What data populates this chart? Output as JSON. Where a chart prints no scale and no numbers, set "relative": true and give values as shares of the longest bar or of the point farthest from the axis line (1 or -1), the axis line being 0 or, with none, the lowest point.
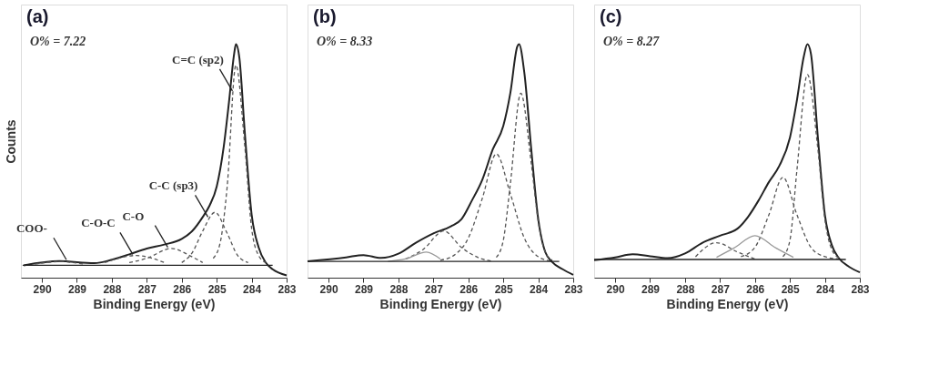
{
  "chart_data": [
    {
      "type": "line",
      "title": "(a)",
      "relative": true,
      "xlabel": "Binding Energy (eV)",
      "ylabel": "Counts",
      "xlim": [
        290.6,
        283
      ],
      "xticks": [
        290,
        289,
        288,
        287,
        286,
        285,
        284,
        283
      ],
      "annotations": [
        "O% = 7.22",
        {
          "text": "C=C (sp2)",
          "x": 284.55,
          "y": 0.8
        },
        {
          "text": "C-C (sp3)",
          "x": 285.25,
          "y": 0.26
        },
        {
          "text": "C-O",
          "x": 286.4,
          "y": 0.13
        },
        {
          "text": "C-O-C",
          "x": 287.4,
          "y": 0.1
        },
        {
          "text": "COO-",
          "x": 289.3,
          "y": 0.077
        }
      ],
      "series": [
        {
          "color": "#222222",
          "line_style": "solid",
          "x": [
            290.52,
            289.5,
            288.5,
            288,
            287.5,
            287,
            286.5,
            286,
            285.7,
            285.4,
            285.2,
            285,
            284.8,
            284.65,
            284.5,
            284.45,
            284.35,
            284.2,
            284.0,
            283.8,
            283.6,
            283.4,
            283.0
          ],
          "values": [
            0.053,
            0.071,
            0.062,
            0.077,
            0.1,
            0.125,
            0.142,
            0.166,
            0.2,
            0.26,
            0.31,
            0.39,
            0.56,
            0.75,
            0.96,
            1.0,
            0.94,
            0.63,
            0.27,
            0.13,
            0.065,
            0.036,
            0.01
          ]
        },
        {
          "color": "#555555",
          "line_style": "dashed",
          "x": [
            285.1,
            284.9,
            284.7,
            284.45,
            284.2,
            284.0,
            283.8,
            283.6
          ],
          "values": [
            0.083,
            0.15,
            0.39,
            0.91,
            0.57,
            0.21,
            0.095,
            0.065
          ]
        },
        {
          "color": "#555555",
          "line_style": "dashed",
          "x": [
            286,
            285.7,
            285.4,
            285.05,
            284.7,
            284.4,
            284.1
          ],
          "values": [
            0.065,
            0.107,
            0.2,
            0.28,
            0.19,
            0.095,
            0.065
          ]
        },
        {
          "color": "#555555",
          "line_style": "dashed",
          "x": [
            287.5,
            287,
            286.3,
            285.7,
            285.4
          ],
          "values": [
            0.065,
            0.083,
            0.125,
            0.089,
            0.065
          ]
        },
        {
          "color": "#555555",
          "line_style": "dashed",
          "x": [
            288.2,
            287.3,
            286.5
          ],
          "values": [
            0.065,
            0.095,
            0.065
          ]
        },
        {
          "color": "#555555",
          "line_style": "dashed",
          "x": [
            290.2,
            289.5,
            288.8
          ],
          "values": [
            0.058,
            0.069,
            0.058
          ]
        },
        {
          "color": "#222222",
          "line_style": "solid",
          "x": [
            290.55,
            283.4
          ],
          "values": [
            0.053,
            0.053
          ]
        }
      ]
    },
    {
      "type": "line",
      "title": "(b)",
      "relative": true,
      "xlabel": "Binding Energy (eV)",
      "xlim": [
        290.6,
        283
      ],
      "xticks": [
        290,
        289,
        288,
        287,
        286,
        285,
        284,
        283
      ],
      "annotations": [
        "O% = 8.33"
      ],
      "series": [
        {
          "color": "#222222",
          "line_style": "solid",
          "x": [
            290.6,
            289.5,
            289,
            288.5,
            288,
            287.5,
            287,
            286.5,
            286.2,
            285.9,
            285.6,
            285.3,
            285,
            284.8,
            284.6,
            284.55,
            284.4,
            284.2,
            284.0,
            283.8,
            283.6,
            283.3,
            283.0
          ],
          "values": [
            0.07,
            0.087,
            0.097,
            0.085,
            0.103,
            0.15,
            0.19,
            0.22,
            0.25,
            0.33,
            0.42,
            0.55,
            0.65,
            0.79,
            0.99,
            1.0,
            0.88,
            0.55,
            0.25,
            0.11,
            0.067,
            0.036,
            0.012
          ]
        },
        {
          "color": "#555555",
          "line_style": "dashed",
          "x": [
            285.2,
            285.0,
            284.8,
            284.5,
            284.2,
            284.0,
            283.8,
            283.6
          ],
          "values": [
            0.087,
            0.16,
            0.4,
            0.79,
            0.49,
            0.24,
            0.11,
            0.075
          ]
        },
        {
          "color": "#555555",
          "line_style": "dashed",
          "x": [
            286.8,
            286.4,
            286,
            285.6,
            285.2,
            284.8,
            284.4,
            284,
            283.6
          ],
          "values": [
            0.075,
            0.097,
            0.17,
            0.34,
            0.53,
            0.36,
            0.17,
            0.09,
            0.07
          ]
        },
        {
          "color": "#555555",
          "line_style": "dashed",
          "x": [
            287.8,
            287.3,
            286.7,
            286.2,
            285.7,
            285.3
          ],
          "values": [
            0.08,
            0.12,
            0.2,
            0.13,
            0.085,
            0.07
          ]
        },
        {
          "color": "#999999",
          "line_style": "solid",
          "x": [
            288.3,
            287.8,
            287.2,
            286.8
          ],
          "values": [
            0.07,
            0.08,
            0.11,
            0.08
          ]
        },
        {
          "color": "#222222",
          "line_style": "solid",
          "x": [
            290.6,
            283.4
          ],
          "values": [
            0.07,
            0.07
          ]
        }
      ]
    },
    {
      "type": "line",
      "title": "(c)",
      "relative": true,
      "xlabel": "Binding Energy (eV)",
      "xlim": [
        290.6,
        283
      ],
      "xticks": [
        290,
        289,
        288,
        287,
        286,
        285,
        284,
        283
      ],
      "annotations": [
        "O% = 8.27"
      ],
      "series": [
        {
          "color": "#222222",
          "line_style": "solid",
          "x": [
            290.6,
            290,
            289.5,
            289,
            288.5,
            288,
            287.5,
            287,
            286.5,
            286.2,
            285.9,
            285.6,
            285.3,
            285,
            284.8,
            284.6,
            284.5,
            284.4,
            284.2,
            284.0,
            283.8,
            283.6,
            283.3,
            283.0
          ],
          "values": [
            0.075,
            0.087,
            0.1,
            0.092,
            0.084,
            0.104,
            0.15,
            0.18,
            0.21,
            0.26,
            0.33,
            0.41,
            0.48,
            0.6,
            0.76,
            0.95,
            1.0,
            0.96,
            0.6,
            0.27,
            0.139,
            0.084,
            0.046,
            0.023
          ]
        },
        {
          "color": "#555555",
          "line_style": "dashed",
          "x": [
            285.2,
            285.0,
            284.8,
            284.5,
            284.2,
            284.0,
            283.8,
            283.6
          ],
          "values": [
            0.09,
            0.16,
            0.46,
            0.87,
            0.55,
            0.25,
            0.12,
            0.085
          ]
        },
        {
          "color": "#555555",
          "line_style": "dashed",
          "x": [
            286.4,
            286,
            285.6,
            285.2,
            284.8,
            284.4,
            284.0,
            283.6
          ],
          "values": [
            0.09,
            0.13,
            0.27,
            0.43,
            0.27,
            0.13,
            0.09,
            0.08
          ]
        },
        {
          "color": "#999999",
          "line_style": "solid",
          "x": [
            287.1,
            286.6,
            286,
            285.4,
            284.9
          ],
          "values": [
            0.087,
            0.127,
            0.18,
            0.127,
            0.087
          ]
        },
        {
          "color": "#555555",
          "line_style": "dashed",
          "x": [
            287.7,
            287.1,
            286.5,
            286
          ],
          "values": [
            0.09,
            0.15,
            0.11,
            0.08
          ]
        },
        {
          "color": "#222222",
          "line_style": "solid",
          "x": [
            290.6,
            283.4
          ],
          "values": [
            0.078,
            0.078
          ]
        }
      ]
    }
  ]
}
